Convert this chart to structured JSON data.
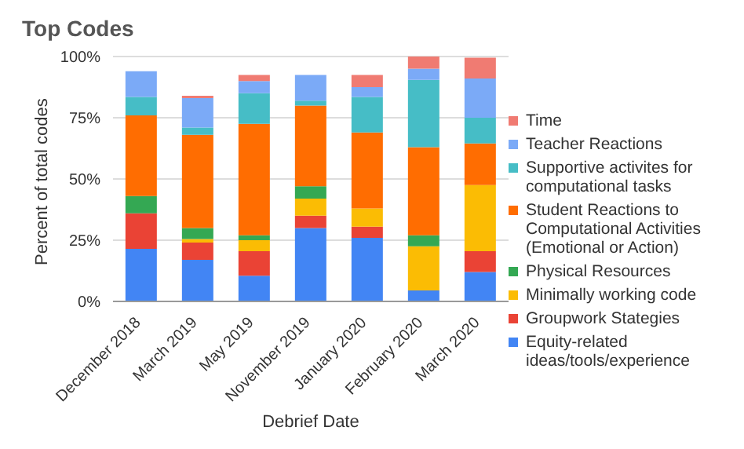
{
  "chart_data": {
    "type": "bar",
    "title": "Top Codes",
    "xlabel": "Debrief Date",
    "ylabel": "Percent of total codes",
    "categories": [
      "December 2018",
      "March 2019",
      "May 2019",
      "November 2019",
      "January 2020",
      "February 2020",
      "March 2020"
    ],
    "stacked": true,
    "grid": "y",
    "legend": "right",
    "ylim": [
      0,
      100
    ],
    "yticks": [
      {
        "value": 0,
        "label": "0%"
      },
      {
        "value": 25,
        "label": "25%"
      },
      {
        "value": 50,
        "label": "50%"
      },
      {
        "value": 75,
        "label": "75%"
      },
      {
        "value": 100,
        "label": "100%"
      }
    ],
    "series": [
      {
        "name": "Equity-related ideas/tools/experience",
        "color": "#4285f4",
        "values": [
          21.5,
          17,
          10.5,
          30,
          26,
          4.5,
          12
        ]
      },
      {
        "name": "Groupwork Stategies",
        "color": "#ea4335",
        "values": [
          14.5,
          7,
          10,
          5,
          4.5,
          0,
          8.5
        ]
      },
      {
        "name": "Minimally working code",
        "color": "#fbbc04",
        "values": [
          0,
          1.5,
          4.5,
          7,
          7.5,
          18,
          27
        ]
      },
      {
        "name": "Physical Resources",
        "color": "#34a853",
        "values": [
          7,
          4.5,
          2,
          5,
          0,
          4.5,
          0
        ]
      },
      {
        "name": "Student Reactions to Computational Activities (Emotional or Action)",
        "color": "#ff6d01",
        "values": [
          33,
          38,
          45.5,
          33,
          31,
          36,
          17
        ]
      },
      {
        "name": "Supportive activites for computational tasks",
        "color": "#46bdc6",
        "values": [
          7.5,
          3,
          12.5,
          2,
          14.5,
          27.5,
          10.5
        ]
      },
      {
        "name": "Teacher Reactions",
        "color": "#7baaf7",
        "values": [
          10.5,
          12,
          5,
          10.5,
          4,
          4.5,
          16
        ]
      },
      {
        "name": "Time",
        "color": "#f07b72",
        "values": [
          0,
          1,
          2.5,
          0,
          5,
          5,
          8.5
        ]
      }
    ]
  }
}
